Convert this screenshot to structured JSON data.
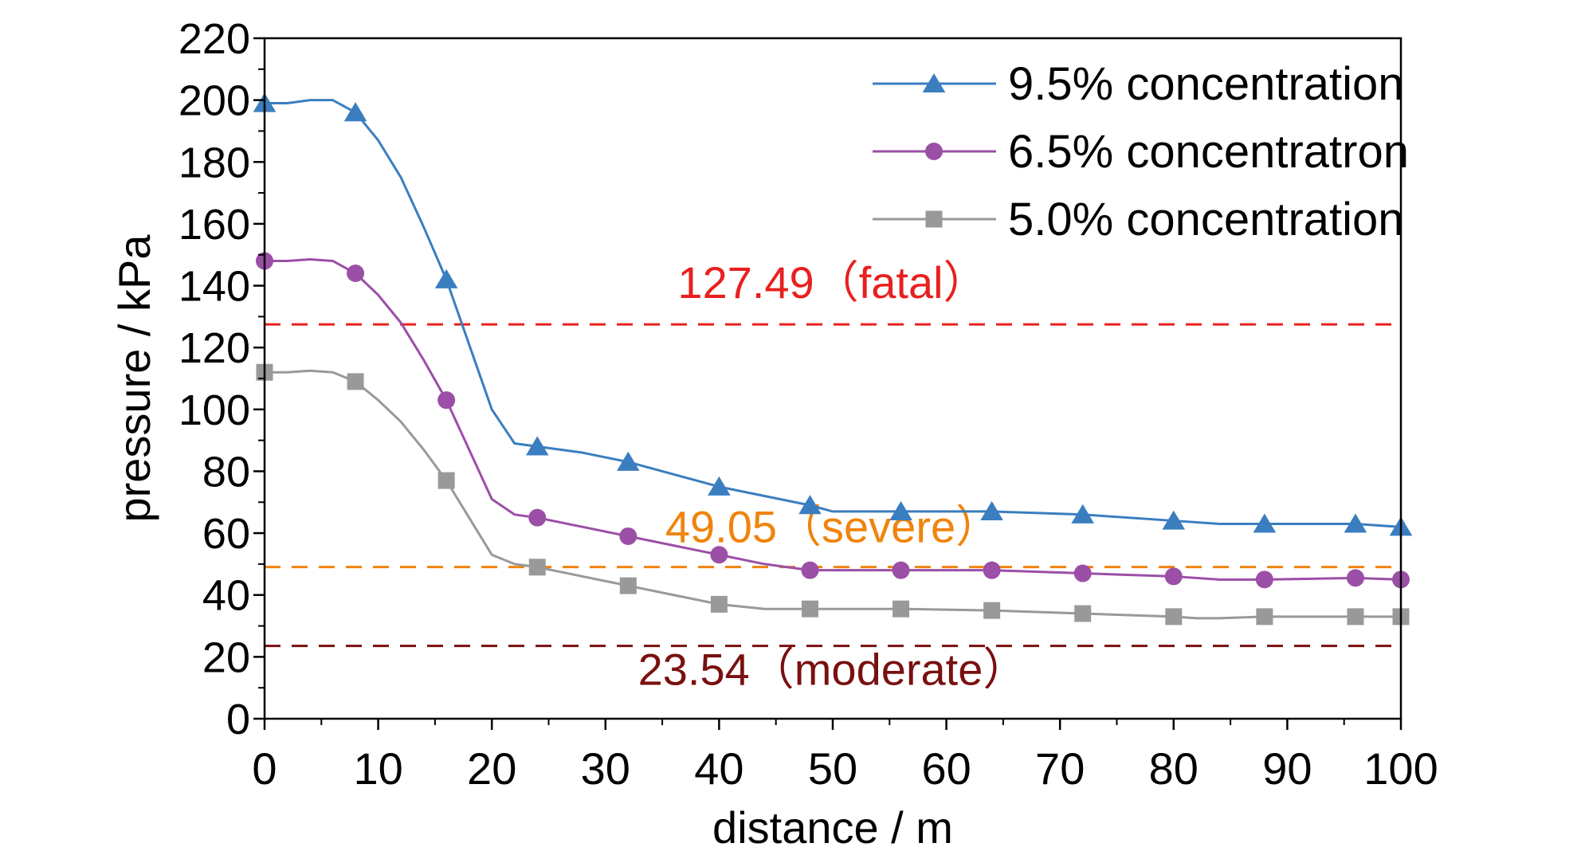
{
  "chart_data": {
    "type": "line",
    "title": "",
    "xlabel": "distance / m",
    "ylabel": "pressure / kPa",
    "xlim": [
      0,
      100
    ],
    "ylim": [
      0,
      220
    ],
    "xticks": [
      "0",
      "10",
      "20",
      "30",
      "40",
      "50",
      "60",
      "70",
      "80",
      "90",
      "100"
    ],
    "yticks": [
      "0",
      "20",
      "40",
      "60",
      "80",
      "100",
      "120",
      "140",
      "160",
      "180",
      "200",
      "220"
    ],
    "grid": false,
    "legend_position": "top-right",
    "series": [
      {
        "name": "9.5% concentration",
        "color": "#3a7ebf",
        "marker": "triangle",
        "line": [
          [
            0,
            199
          ],
          [
            2,
            199
          ],
          [
            4,
            200
          ],
          [
            6,
            200
          ],
          [
            8,
            196
          ],
          [
            10,
            187
          ],
          [
            12,
            175
          ],
          [
            14,
            159
          ],
          [
            16,
            142
          ],
          [
            18,
            121
          ],
          [
            20,
            100
          ],
          [
            22,
            89
          ],
          [
            24,
            88
          ],
          [
            28,
            86
          ],
          [
            32,
            83
          ],
          [
            36,
            79
          ],
          [
            40,
            75
          ],
          [
            44,
            72
          ],
          [
            48,
            69
          ],
          [
            50,
            67
          ],
          [
            56,
            67
          ],
          [
            64,
            67
          ],
          [
            72,
            66
          ],
          [
            80,
            64
          ],
          [
            84,
            63
          ],
          [
            88,
            63
          ],
          [
            96,
            63
          ],
          [
            100,
            62
          ]
        ],
        "markers": [
          [
            0,
            199
          ],
          [
            8,
            196
          ],
          [
            16,
            142
          ],
          [
            24,
            88
          ],
          [
            32,
            83
          ],
          [
            40,
            75
          ],
          [
            48,
            69
          ],
          [
            56,
            67
          ],
          [
            64,
            67
          ],
          [
            72,
            66
          ],
          [
            80,
            64
          ],
          [
            88,
            63
          ],
          [
            96,
            63
          ],
          [
            100,
            62
          ]
        ]
      },
      {
        "name": "6.5% concentratron",
        "color": "#9b4fa6",
        "marker": "circle",
        "line": [
          [
            0,
            148
          ],
          [
            2,
            148
          ],
          [
            4,
            148.5
          ],
          [
            6,
            148
          ],
          [
            8,
            144
          ],
          [
            10,
            137
          ],
          [
            12,
            128
          ],
          [
            14,
            116
          ],
          [
            16,
            103
          ],
          [
            18,
            87
          ],
          [
            20,
            71
          ],
          [
            22,
            66
          ],
          [
            24,
            65
          ],
          [
            28,
            62
          ],
          [
            32,
            59
          ],
          [
            36,
            56
          ],
          [
            40,
            53
          ],
          [
            44,
            50
          ],
          [
            48,
            48
          ],
          [
            56,
            48
          ],
          [
            64,
            48
          ],
          [
            72,
            47
          ],
          [
            76,
            46.5
          ],
          [
            80,
            46
          ],
          [
            84,
            45
          ],
          [
            88,
            45
          ],
          [
            96,
            45.5
          ],
          [
            100,
            45
          ]
        ],
        "markers": [
          [
            0,
            148
          ],
          [
            8,
            144
          ],
          [
            16,
            103
          ],
          [
            24,
            65
          ],
          [
            32,
            59
          ],
          [
            40,
            53
          ],
          [
            48,
            48
          ],
          [
            56,
            48
          ],
          [
            64,
            48
          ],
          [
            72,
            47
          ],
          [
            80,
            46
          ],
          [
            88,
            45
          ],
          [
            96,
            45.5
          ],
          [
            100,
            45
          ]
        ]
      },
      {
        "name": "5.0% concentration",
        "color": "#999999",
        "marker": "square",
        "line": [
          [
            0,
            112
          ],
          [
            2,
            112
          ],
          [
            4,
            112.5
          ],
          [
            6,
            112
          ],
          [
            8,
            109
          ],
          [
            10,
            103
          ],
          [
            12,
            96
          ],
          [
            14,
            87
          ],
          [
            16,
            77
          ],
          [
            18,
            65
          ],
          [
            20,
            53
          ],
          [
            22,
            50
          ],
          [
            24,
            49
          ],
          [
            28,
            46
          ],
          [
            32,
            43
          ],
          [
            36,
            40
          ],
          [
            40,
            37
          ],
          [
            44,
            35.5
          ],
          [
            48,
            35.5
          ],
          [
            56,
            35.5
          ],
          [
            64,
            35
          ],
          [
            72,
            34
          ],
          [
            80,
            33
          ],
          [
            82,
            32.5
          ],
          [
            84,
            32.5
          ],
          [
            88,
            33
          ],
          [
            90,
            33
          ],
          [
            96,
            33
          ],
          [
            100,
            33
          ]
        ],
        "markers": [
          [
            0,
            112
          ],
          [
            8,
            109
          ],
          [
            16,
            77
          ],
          [
            24,
            49
          ],
          [
            32,
            43
          ],
          [
            40,
            37
          ],
          [
            48,
            35.5
          ],
          [
            56,
            35.5
          ],
          [
            64,
            35
          ],
          [
            72,
            34
          ],
          [
            80,
            33
          ],
          [
            88,
            33
          ],
          [
            96,
            33
          ],
          [
            100,
            33
          ]
        ]
      }
    ],
    "reference_lines": [
      {
        "value": 127.49,
        "label": "127.49（fatal）",
        "color": "#e8201f",
        "label_x": 50,
        "label_y": 136
      },
      {
        "value": 49.05,
        "label": "49.05（severe）",
        "color": "#f0840c",
        "label_x": 50,
        "label_y": 57
      },
      {
        "value": 23.54,
        "label": "23.54（moderate）",
        "color": "#7a1010",
        "label_x": 50,
        "label_y": 11
      }
    ]
  }
}
